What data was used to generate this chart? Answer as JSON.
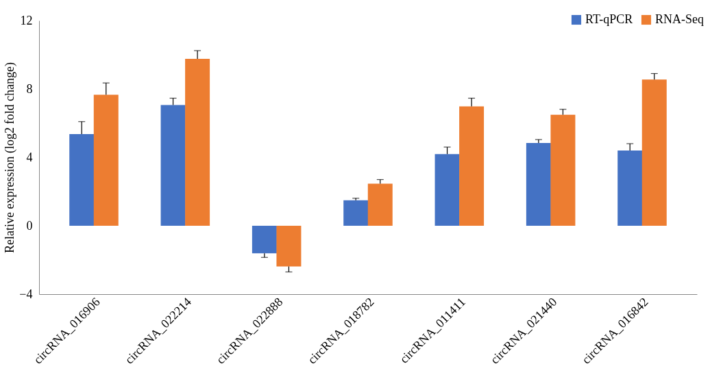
{
  "chart_data": {
    "type": "bar",
    "ylabel": "Relative expression (log2 fold change)",
    "categories": [
      "circRNA_016906",
      "circRNA_022214",
      "circRNA_022888",
      "circRNA_018782",
      "circRNA_011411",
      "circRNA_021440",
      "circRNA_016842"
    ],
    "series": [
      {
        "name": "RT-qPCR",
        "color": "#4472c4",
        "values": [
          5.36,
          7.06,
          -1.61,
          1.49,
          4.19,
          4.84,
          4.4
        ],
        "errors": [
          [
            5.36,
            6.09
          ],
          [
            7.06,
            7.46
          ],
          [
            -1.85,
            -1.61
          ],
          [
            1.49,
            1.61
          ],
          [
            4.19,
            4.6
          ],
          [
            4.84,
            5.04
          ],
          [
            4.4,
            4.8
          ]
        ]
      },
      {
        "name": "RNA-Seq",
        "color": "#ed7d31",
        "values": [
          7.66,
          9.76,
          -2.38,
          2.46,
          6.98,
          6.49,
          8.55
        ],
        "errors": [
          [
            7.66,
            8.35
          ],
          [
            9.76,
            10.24
          ],
          [
            -2.7,
            -2.38
          ],
          [
            2.46,
            2.7
          ],
          [
            6.98,
            7.46
          ],
          [
            6.49,
            6.81
          ],
          [
            8.55,
            8.9
          ]
        ]
      }
    ],
    "ylim": [
      -4,
      12
    ],
    "yticks": [
      -4,
      0,
      4,
      8,
      12
    ],
    "grid": false,
    "legend": "top right"
  }
}
